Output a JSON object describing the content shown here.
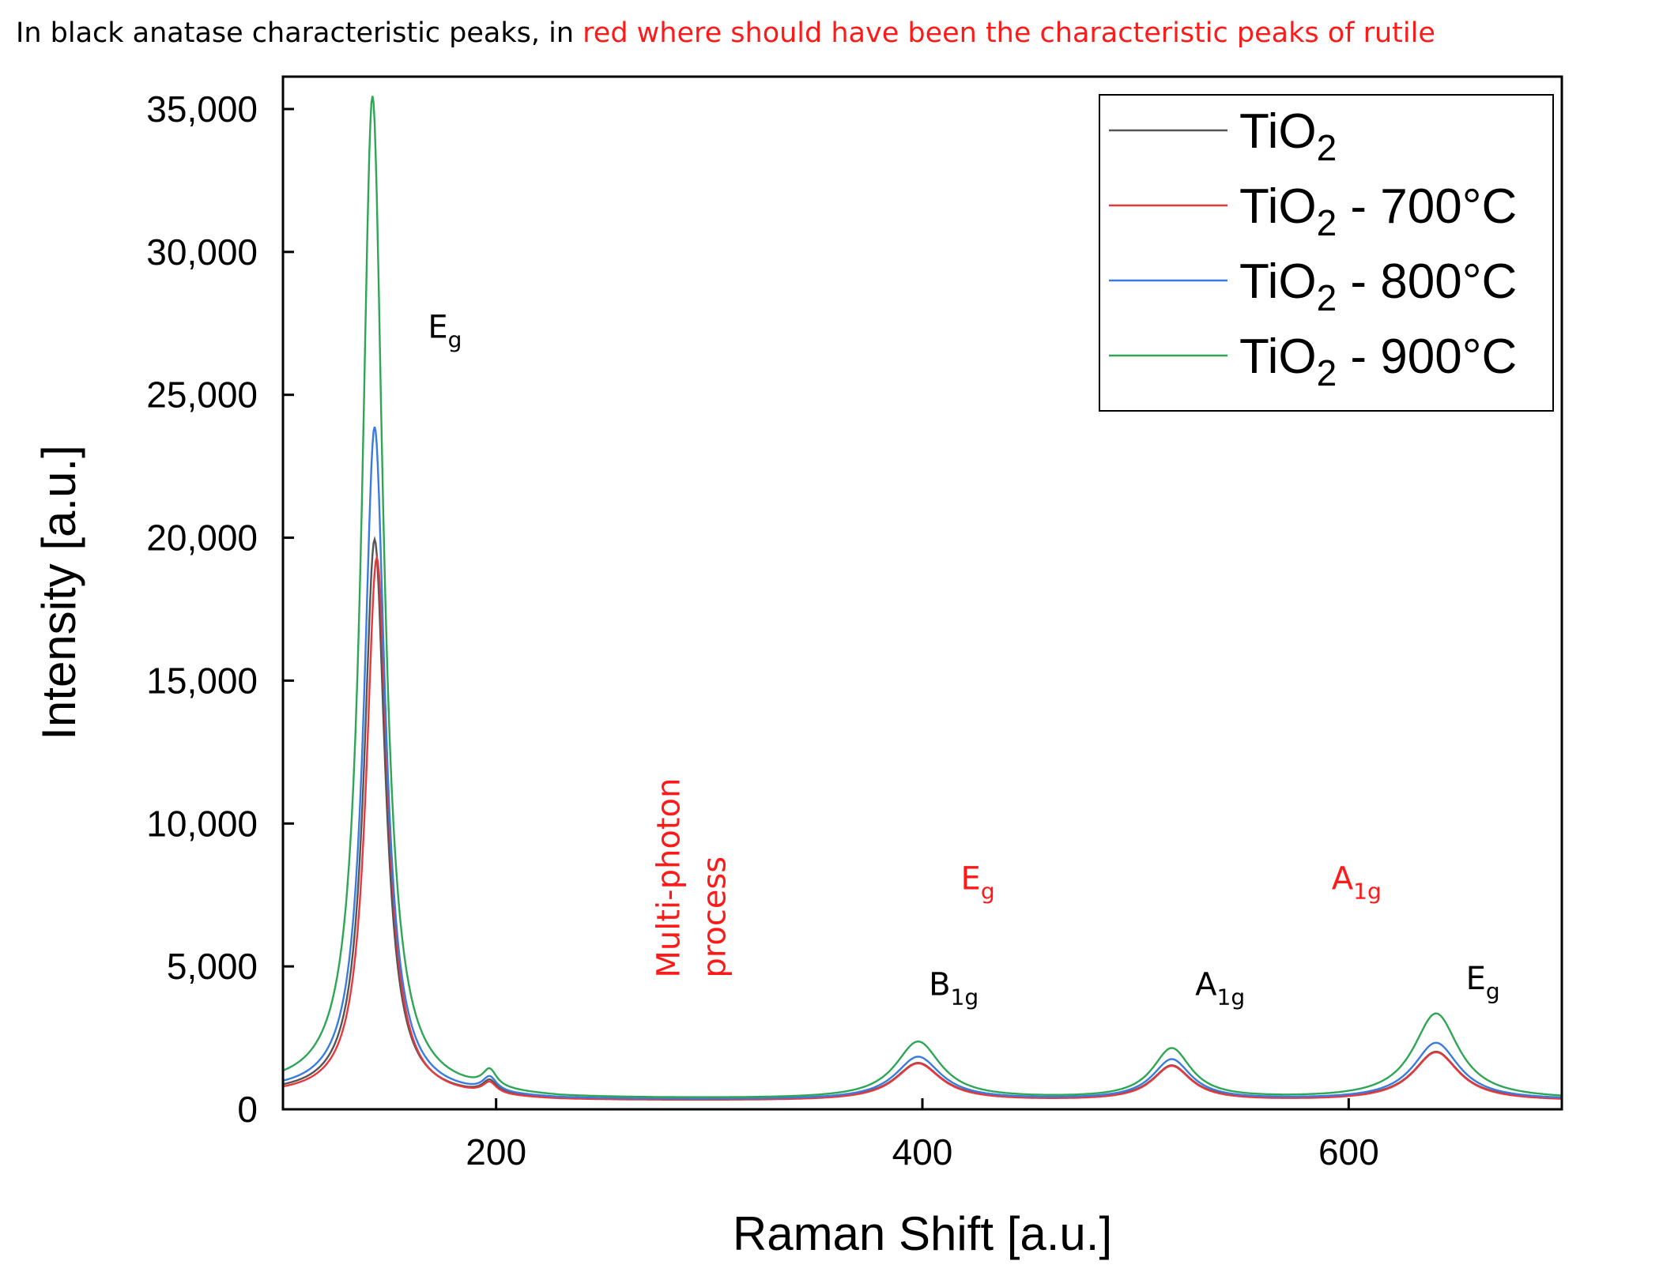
{
  "caption": {
    "black_part": "In black anatase characteristic peaks, in ",
    "red_part": "red where should have been the characteristic peaks of rutile"
  },
  "colors": {
    "anatase": "#000000",
    "rutile": "#ff1a1a"
  },
  "chart_data": {
    "type": "line",
    "title": "",
    "xlabel": "Raman Shift [a.u.]",
    "ylabel": "Intensity [a.u.]",
    "xlim": [
      100,
      700
    ],
    "ylim": [
      0,
      36000
    ],
    "xticks": [
      200,
      400,
      600
    ],
    "xtick_labels": [
      "200",
      "400",
      "600"
    ],
    "yticks": [
      0,
      5000,
      10000,
      15000,
      20000,
      25000,
      30000,
      35000
    ],
    "ytick_labels": [
      "0",
      "5,000",
      "10,000",
      "15,000",
      "20,000",
      "25,000",
      "30,000",
      "35,000"
    ],
    "legend_position": "top-right",
    "series": [
      {
        "name": "TiO2",
        "name_base": "TiO",
        "name_sub": "2",
        "name_suffix": "",
        "color": "#555555",
        "baseline_start": 500,
        "plateau": 300,
        "peaks": [
          {
            "x": 143,
            "h": 19500,
            "w": 6
          },
          {
            "x": 197,
            "h": 450,
            "w": 4
          },
          {
            "x": 398,
            "h": 1300,
            "w": 13
          },
          {
            "x": 517,
            "h": 1200,
            "w": 11
          },
          {
            "x": 641,
            "h": 1700,
            "w": 13
          }
        ]
      },
      {
        "name": "TiO2 - 700°C",
        "name_base": "TiO",
        "name_sub": "2",
        "name_suffix": " - 700°C",
        "color": "#e8383d",
        "baseline_start": 450,
        "plateau": 280,
        "peaks": [
          {
            "x": 144,
            "h": 18900,
            "w": 6
          },
          {
            "x": 197,
            "h": 400,
            "w": 4
          },
          {
            "x": 398,
            "h": 1300,
            "w": 13
          },
          {
            "x": 517,
            "h": 1200,
            "w": 11
          },
          {
            "x": 641,
            "h": 1700,
            "w": 13
          }
        ]
      },
      {
        "name": "TiO2 - 800°C",
        "name_base": "TiO",
        "name_sub": "2",
        "name_suffix": " - 800°C",
        "color": "#3a7be0",
        "baseline_start": 550,
        "plateau": 310,
        "peaks": [
          {
            "x": 143,
            "h": 23400,
            "w": 6
          },
          {
            "x": 197,
            "h": 500,
            "w": 4
          },
          {
            "x": 398,
            "h": 1500,
            "w": 13
          },
          {
            "x": 517,
            "h": 1400,
            "w": 11
          },
          {
            "x": 641,
            "h": 2000,
            "w": 13
          }
        ]
      },
      {
        "name": "TiO2 - 900°C",
        "name_base": "TiO",
        "name_sub": "2",
        "name_suffix": " - 900°C",
        "color": "#2ea655",
        "baseline_start": 650,
        "plateau": 330,
        "peaks": [
          {
            "x": 142,
            "h": 34900,
            "w": 6
          },
          {
            "x": 197,
            "h": 600,
            "w": 4
          },
          {
            "x": 398,
            "h": 2000,
            "w": 13
          },
          {
            "x": 517,
            "h": 1750,
            "w": 11
          },
          {
            "x": 641,
            "h": 3000,
            "w": 13
          }
        ]
      }
    ],
    "annotations": [
      {
        "base": "E",
        "sub": "g",
        "color": "black",
        "x": 168,
        "y": 27000
      },
      {
        "base": "B",
        "sub": "1g",
        "color": "black",
        "x": 403,
        "y": 4000
      },
      {
        "base": "A",
        "sub": "1g",
        "color": "black",
        "x": 528,
        "y": 4000
      },
      {
        "base": "E",
        "sub": "g",
        "color": "black",
        "x": 655,
        "y": 4200
      },
      {
        "base": "E",
        "sub": "g",
        "color": "red",
        "x": 418,
        "y": 7700
      },
      {
        "base": "A",
        "sub": "1g",
        "color": "red",
        "x": 592,
        "y": 7700
      }
    ],
    "multiphoton": {
      "line1": "Multi-photon",
      "line2": "process",
      "color": "red",
      "x": 286,
      "y": 4600
    }
  }
}
